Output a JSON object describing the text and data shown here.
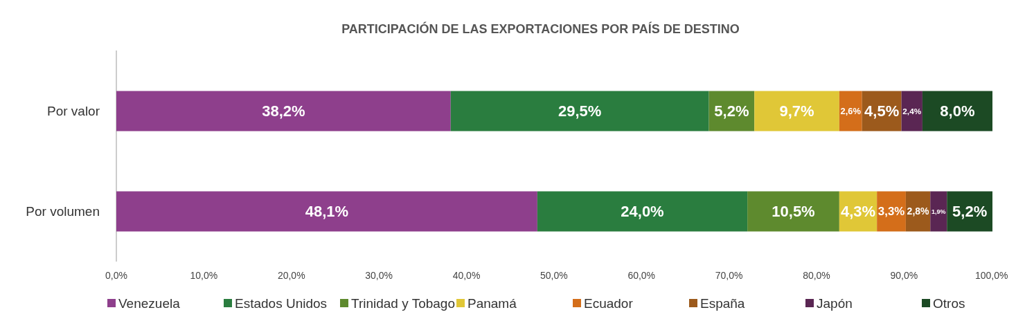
{
  "chart_data": {
    "type": "bar",
    "orientation": "horizontal",
    "stacked": true,
    "title": "PARTICIPACIÓN DE LAS EXPORTACIONES POR PAÍS DE DESTINO",
    "categories": [
      "Por valor",
      "Por volumen"
    ],
    "series": [
      {
        "name": "Venezuela",
        "color": "#8e3f8c",
        "values": [
          38.2,
          48.1
        ],
        "value_labels": [
          "38,2%",
          "48,1%"
        ]
      },
      {
        "name": "Estados Unidos",
        "color": "#2a7d3f",
        "values": [
          29.5,
          24.0
        ],
        "value_labels": [
          "29,5%",
          "24,0%"
        ]
      },
      {
        "name": "Trinidad y Tobago",
        "color": "#5e8a2e",
        "values": [
          5.2,
          10.5
        ],
        "value_labels": [
          "5,2%",
          "10,5%"
        ]
      },
      {
        "name": "Panamá",
        "color": "#e0c737",
        "values": [
          9.7,
          4.3
        ],
        "value_labels": [
          "9,7%",
          "4,3%"
        ]
      },
      {
        "name": "Ecuador",
        "color": "#d46e1a",
        "values": [
          2.6,
          3.3
        ],
        "value_labels": [
          "2,6%",
          "3,3%"
        ]
      },
      {
        "name": "España",
        "color": "#9c5a1c",
        "values": [
          4.5,
          2.8
        ],
        "value_labels": [
          "4,5%",
          "2,8%"
        ]
      },
      {
        "name": "Japón",
        "color": "#5a2653",
        "values": [
          2.4,
          1.9
        ],
        "value_labels": [
          "2,4%",
          "1,9%"
        ]
      },
      {
        "name": "Otros",
        "color": "#1c4a24",
        "values": [
          8.0,
          5.2
        ],
        "value_labels": [
          "8,0%",
          "5,2%"
        ]
      }
    ],
    "xlim": [
      0,
      100.1
    ],
    "xticks": [
      {
        "value": 0,
        "label": "0,0%"
      },
      {
        "value": 10,
        "label": "10,0%"
      },
      {
        "value": 20,
        "label": "20,0%"
      },
      {
        "value": 30,
        "label": "30,0%"
      },
      {
        "value": 40,
        "label": "40,0%"
      },
      {
        "value": 50,
        "label": "50,0%"
      },
      {
        "value": 60,
        "label": "60,0%"
      },
      {
        "value": 70,
        "label": "70,0%"
      },
      {
        "value": 80,
        "label": "80,0%"
      },
      {
        "value": 90,
        "label": "90,0%"
      },
      {
        "value": 100,
        "label": "100,0%"
      }
    ],
    "grid": false,
    "legend": "bottom"
  }
}
